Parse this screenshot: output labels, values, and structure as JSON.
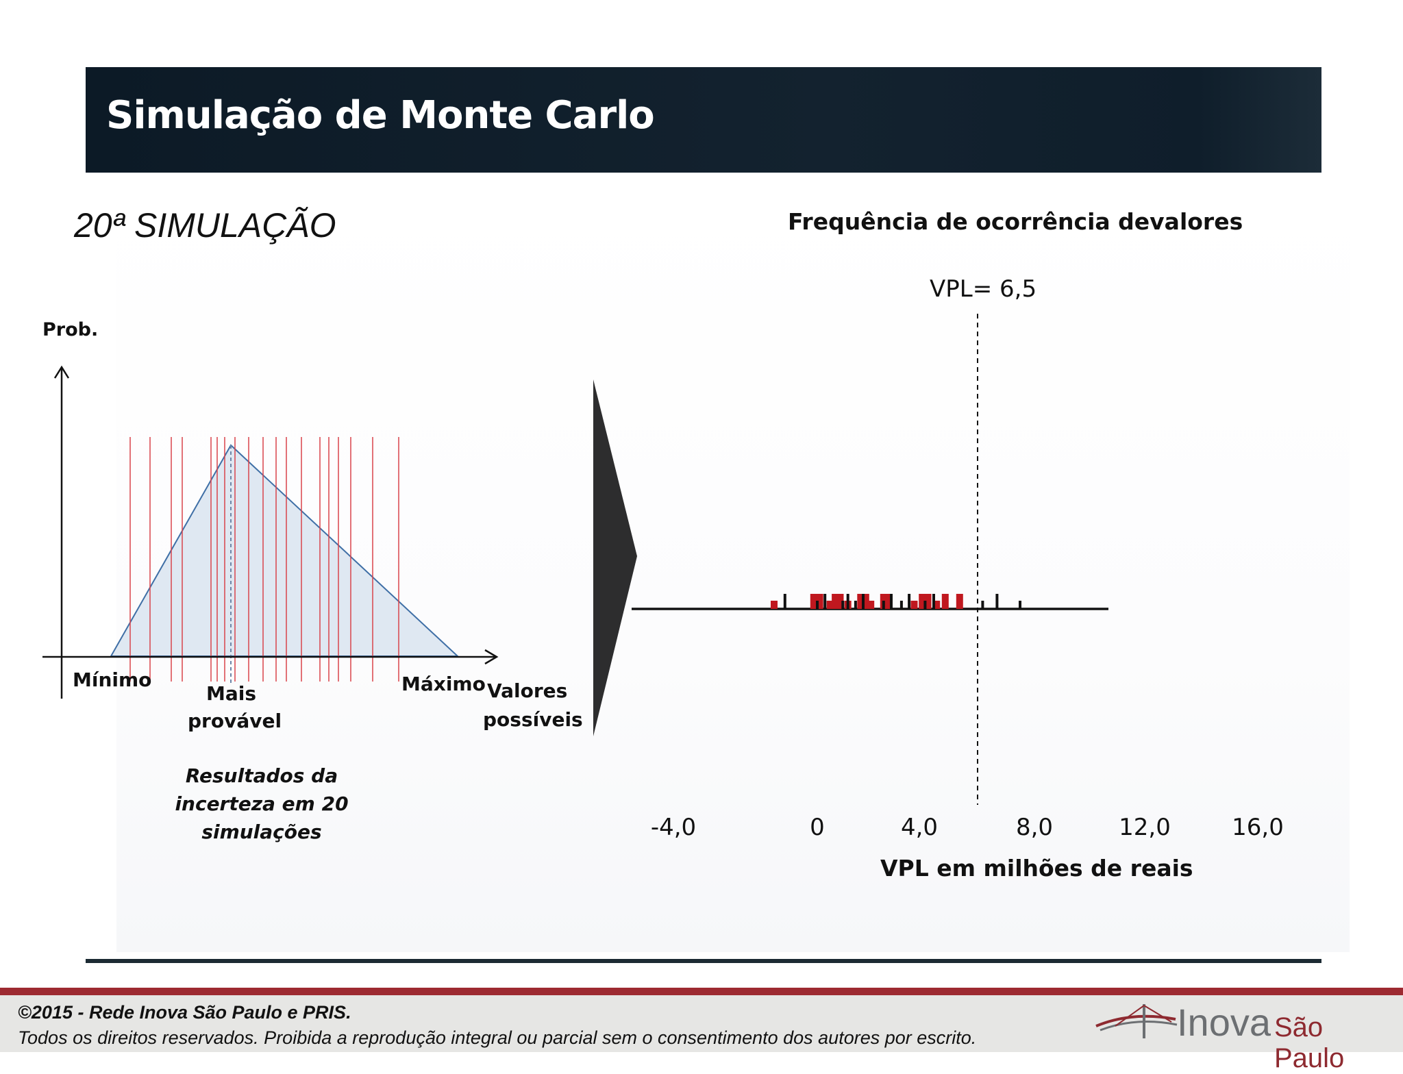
{
  "header": {
    "title": "Simulação de Monte Carlo"
  },
  "left": {
    "heading": "20ª SIMULAÇÃO",
    "y_axis_label": "Prob.",
    "min_label": "Mínimo",
    "mode_label_1": "Mais",
    "mode_label_2": "provável",
    "max_label": "Máximo",
    "x_label_1": "Valores",
    "x_label_2": "possíveis",
    "note_1": "Resultados da",
    "note_2": "incerteza em 20",
    "note_3": "simulações"
  },
  "chart_data": {
    "type": "bar",
    "title": "Frequência de ocorrência devalores",
    "xlabel": "VPL em milhões de reais",
    "xticks": [
      "-4,0",
      "0",
      "4,0",
      "8,0",
      "12,0",
      "16,0"
    ],
    "reference_line": {
      "label": "VPL= 6,5",
      "x": 6.5
    },
    "series": [
      {
        "color": "#c0181f",
        "x": [
          -1.2,
          -0.1,
          0.1,
          0.5,
          0.7,
          0.9,
          1.2,
          1.7,
          1.9,
          2.1,
          2.6,
          2.8,
          3.8,
          4.1,
          4.3,
          4.6,
          4.9,
          5.4
        ]
      },
      {
        "color": "#111111",
        "x": [
          -0.9,
          0.0,
          0.3,
          1.0,
          1.2,
          1.5,
          1.8,
          2.6,
          2.9,
          3.3,
          3.6,
          4.2,
          4.5,
          6.2,
          6.7,
          7.5
        ]
      }
    ]
  },
  "footer": {
    "copyright": "©2015 - Rede Inova São Paulo e PRIS.",
    "rights": "Todos os direitos reservados. Proibida a reprodução integral ou parcial sem o consentimento dos autores por escrito.",
    "logo_word": "Inova",
    "logo_sub": "São Paulo"
  }
}
